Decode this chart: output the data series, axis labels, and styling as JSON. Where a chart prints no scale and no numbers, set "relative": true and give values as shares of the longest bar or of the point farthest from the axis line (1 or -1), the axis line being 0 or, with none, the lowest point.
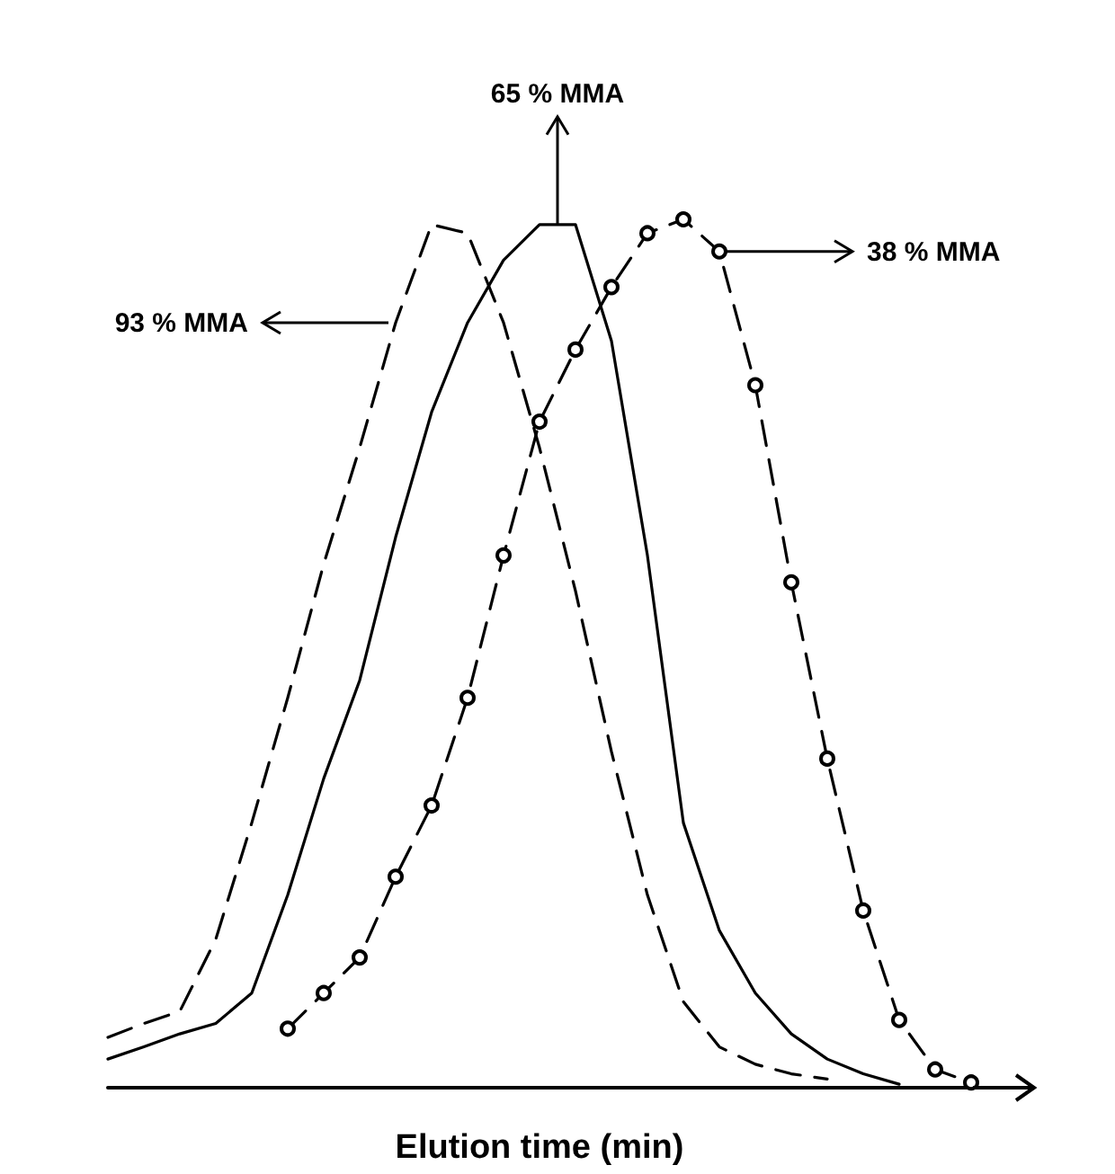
{
  "chart_data": {
    "type": "line",
    "relative": true,
    "xlabel": "Elution time (min)",
    "annotations": [
      "93 % MMA",
      "65 % MMA",
      "38 % MMA"
    ],
    "categories": [
      null,
      null,
      null,
      null,
      null,
      null,
      null,
      null,
      null,
      null,
      null,
      null,
      null,
      null,
      null,
      null,
      null,
      null,
      null,
      null,
      null,
      null,
      null,
      null,
      null
    ],
    "series": [
      {
        "color": "#000000",
        "line_style": "dashed",
        "marker": "none",
        "values": [
          0.058,
          0.074,
          0.088,
          0.171,
          0.305,
          0.449,
          0.603,
          0.737,
          0.881,
          0.994,
          0.984,
          0.881,
          0.737,
          0.572,
          0.387,
          0.222,
          0.099,
          0.047,
          0.027,
          0.016,
          0.01,
          null,
          null,
          null,
          null
        ]
      },
      {
        "color": "#000000",
        "line_style": "solid",
        "marker": "none",
        "values": [
          0.033,
          0.047,
          0.062,
          0.074,
          0.109,
          0.222,
          0.356,
          0.469,
          0.634,
          0.778,
          0.881,
          0.953,
          0.994,
          0.994,
          0.86,
          0.613,
          0.305,
          0.181,
          0.109,
          0.062,
          0.033,
          0.016,
          0.004,
          null,
          null
        ]
      },
      {
        "color": "#000000",
        "line_style": "dashed",
        "marker": "circle",
        "values": [
          null,
          null,
          null,
          null,
          null,
          0.068,
          0.109,
          0.15,
          0.243,
          0.325,
          0.449,
          0.613,
          0.767,
          0.85,
          0.922,
          0.984,
          1,
          0.963,
          0.809,
          0.582,
          0.379,
          0.204,
          0.078,
          0.021,
          0.006
        ]
      }
    ],
    "grid": false
  }
}
